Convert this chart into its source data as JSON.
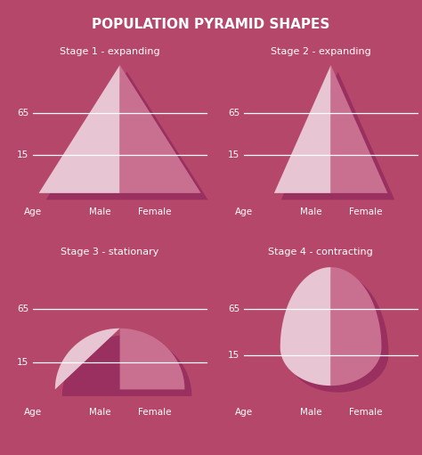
{
  "title": "POPULATION PYRAMID SHAPES",
  "bg_color": "#b5476a",
  "shadow_color": "#993060",
  "light_color": "#e8c5d2",
  "dark_color": "#c97090",
  "line_color": "#ffffff",
  "text_color": "#ffffff",
  "stages": [
    {
      "label": "Stage 1 - expanding",
      "type": "triangle_wide"
    },
    {
      "label": "Stage 2 - expanding",
      "type": "triangle_narrow"
    },
    {
      "label": "Stage 3 - stationary",
      "type": "bell"
    },
    {
      "label": "Stage 4 - contracting",
      "type": "egg"
    }
  ],
  "title_fontsize": 11,
  "stage_fontsize": 8,
  "label_fontsize": 7.5,
  "age_fontsize": 7.5
}
